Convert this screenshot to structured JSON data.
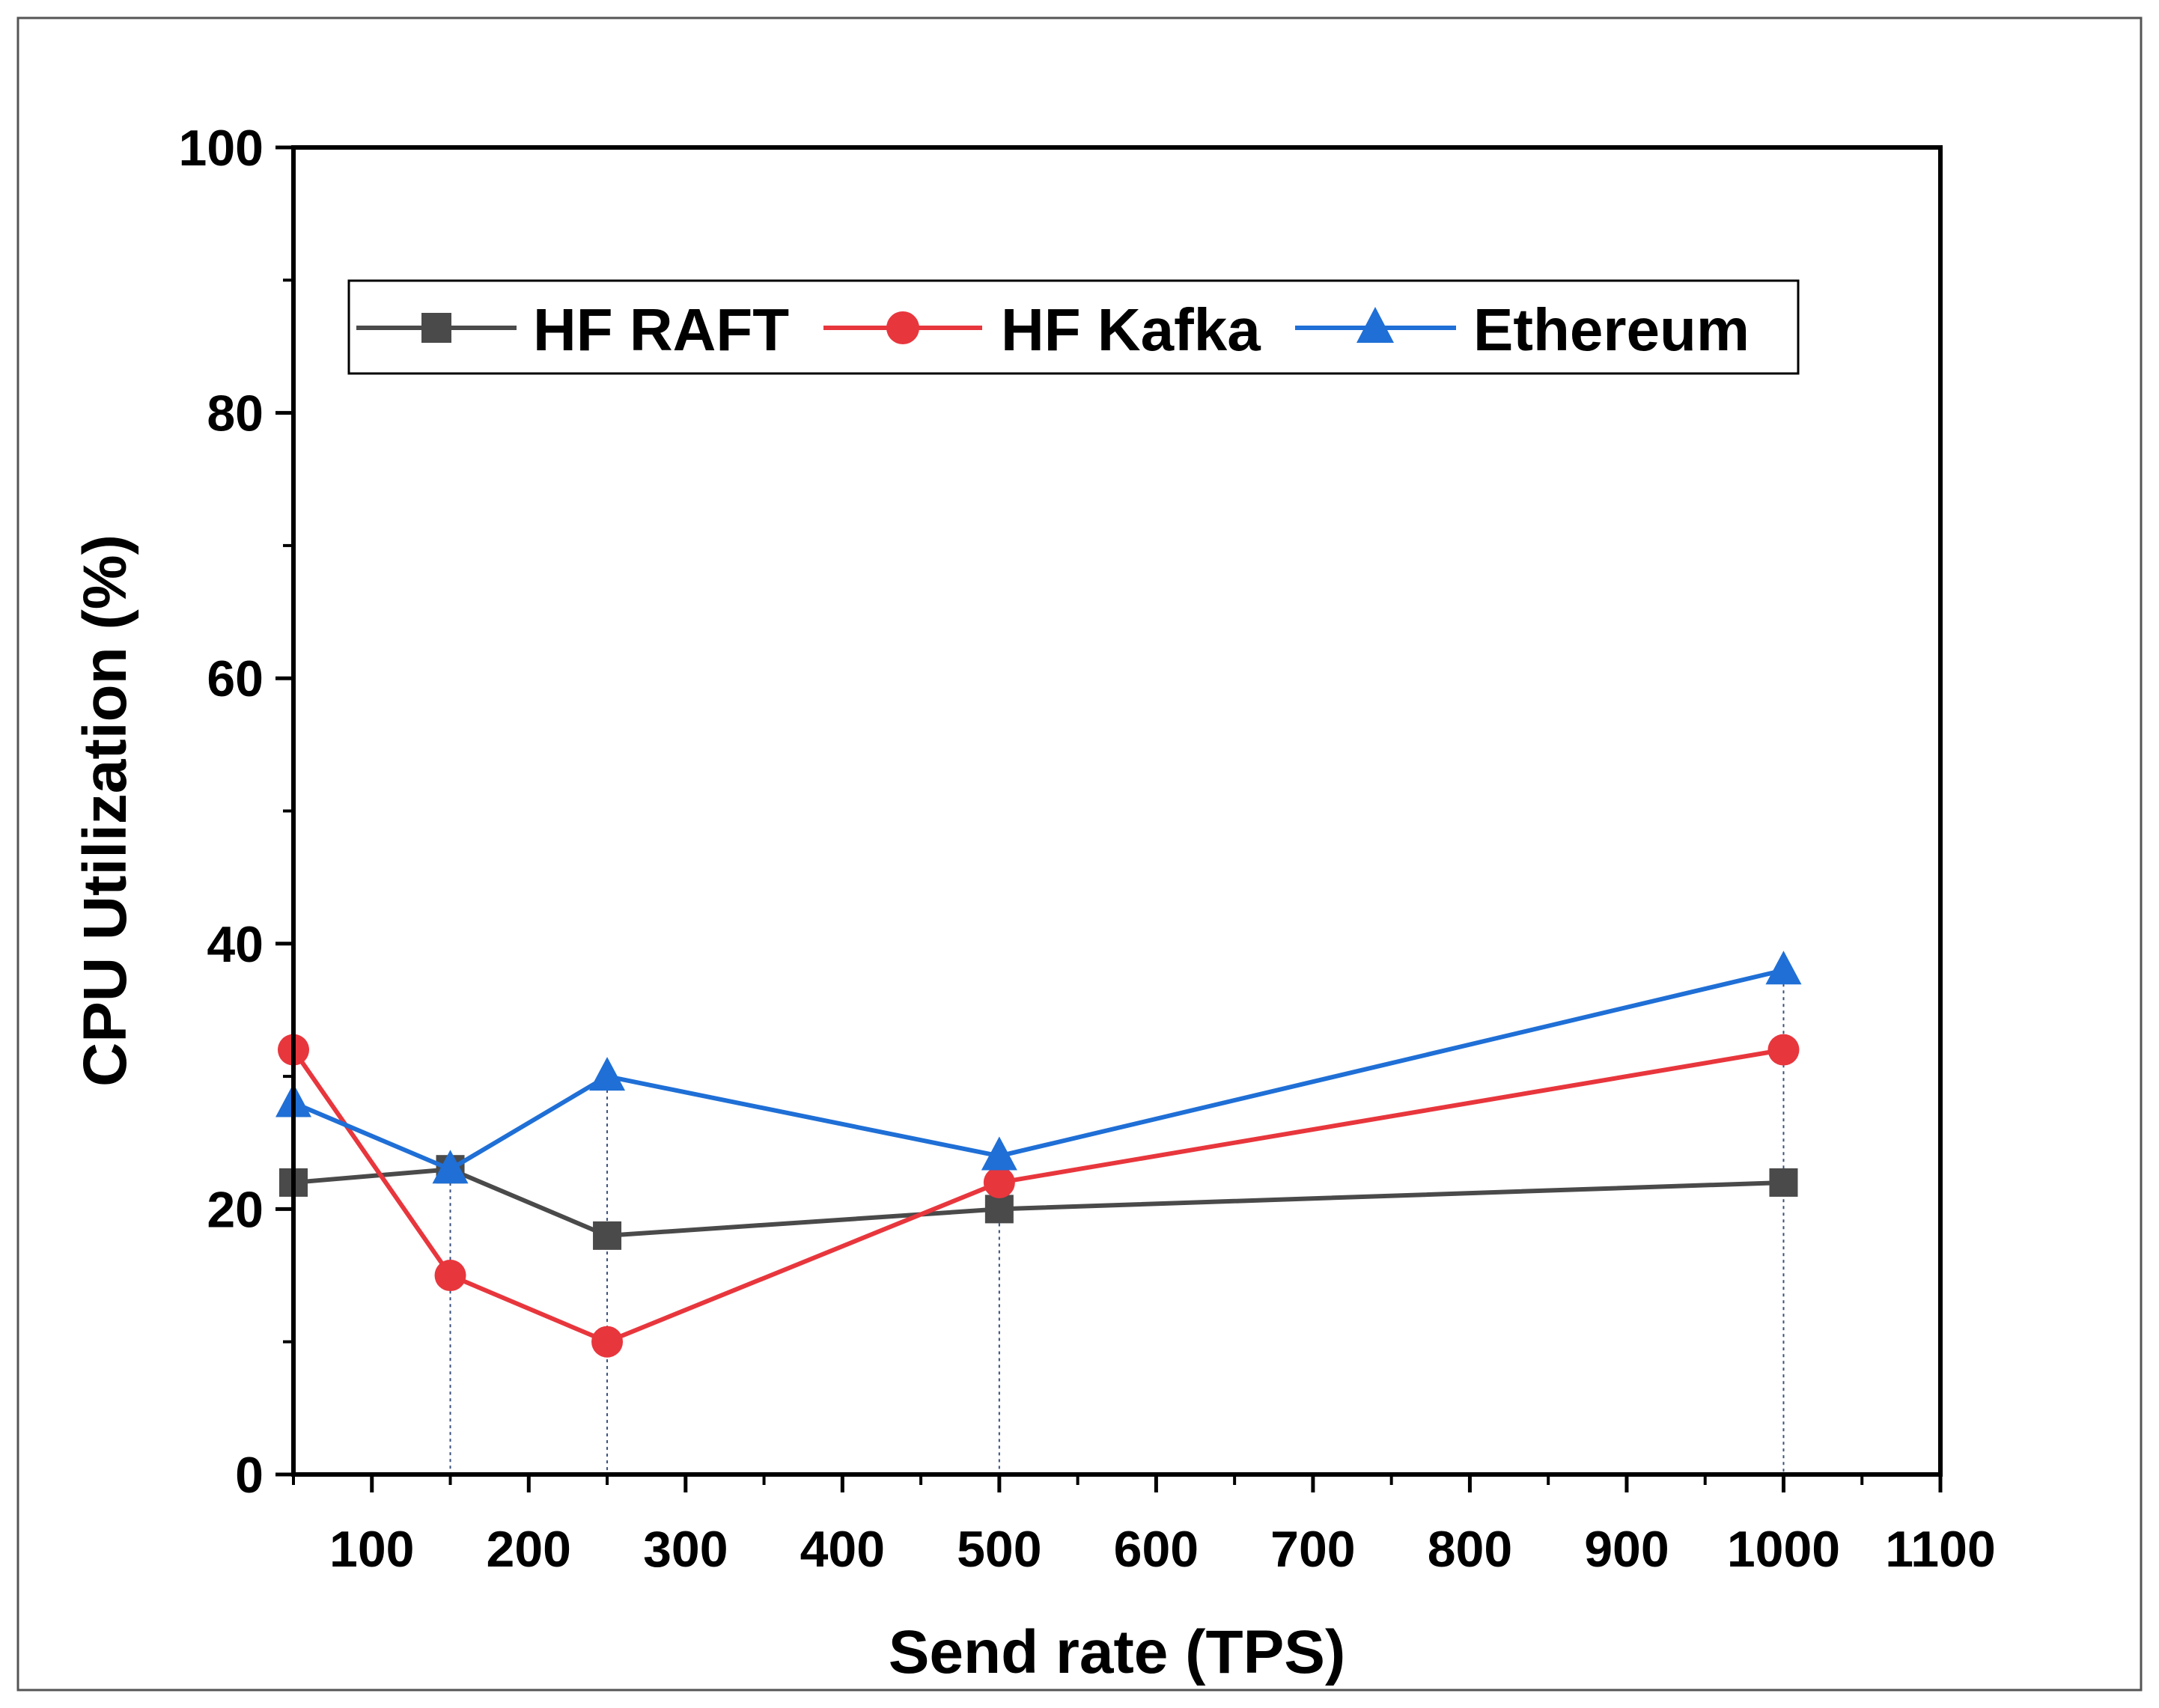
{
  "chart_data": {
    "type": "line",
    "title": "",
    "xlabel": "Send rate (TPS)",
    "ylabel": "CPU Utilization (%)",
    "xlim": [
      50,
      1100
    ],
    "ylim": [
      0,
      100
    ],
    "x_ticks": [
      100,
      200,
      300,
      400,
      500,
      600,
      700,
      800,
      900,
      1000,
      1100
    ],
    "x_tick_labels": [
      "100",
      "200",
      "300",
      "400",
      "500",
      "600",
      "700",
      "800",
      "900",
      "1000",
      "1100"
    ],
    "y_ticks": [
      0,
      20,
      40,
      60,
      80,
      100
    ],
    "y_tick_labels": [
      "0",
      "20",
      "40",
      "60",
      "80",
      "100"
    ],
    "x_minor_ticks": [
      50,
      150,
      250,
      350,
      450,
      550,
      650,
      750,
      850,
      950,
      1050
    ],
    "y_minor_ticks": [
      10,
      30,
      50,
      70,
      90
    ],
    "drop_lines_x": [
      150,
      250,
      500,
      1000
    ],
    "grid": false,
    "legend_position": "top",
    "series": [
      {
        "name": "HF RAFT",
        "color": "#4a4a4a",
        "marker": "square",
        "x": [
          50,
          150,
          250,
          500,
          1000
        ],
        "values": [
          22,
          23,
          18,
          20,
          22
        ]
      },
      {
        "name": "HF Kafka",
        "color": "#e8363d",
        "marker": "circle",
        "x": [
          50,
          150,
          250,
          500,
          1000
        ],
        "values": [
          32,
          15,
          10,
          22,
          32
        ]
      },
      {
        "name": "Ethereum",
        "color": "#1f6fd6",
        "marker": "triangle",
        "x": [
          50,
          150,
          250,
          500,
          1000
        ],
        "values": [
          28,
          23,
          30,
          24,
          38
        ]
      }
    ]
  }
}
